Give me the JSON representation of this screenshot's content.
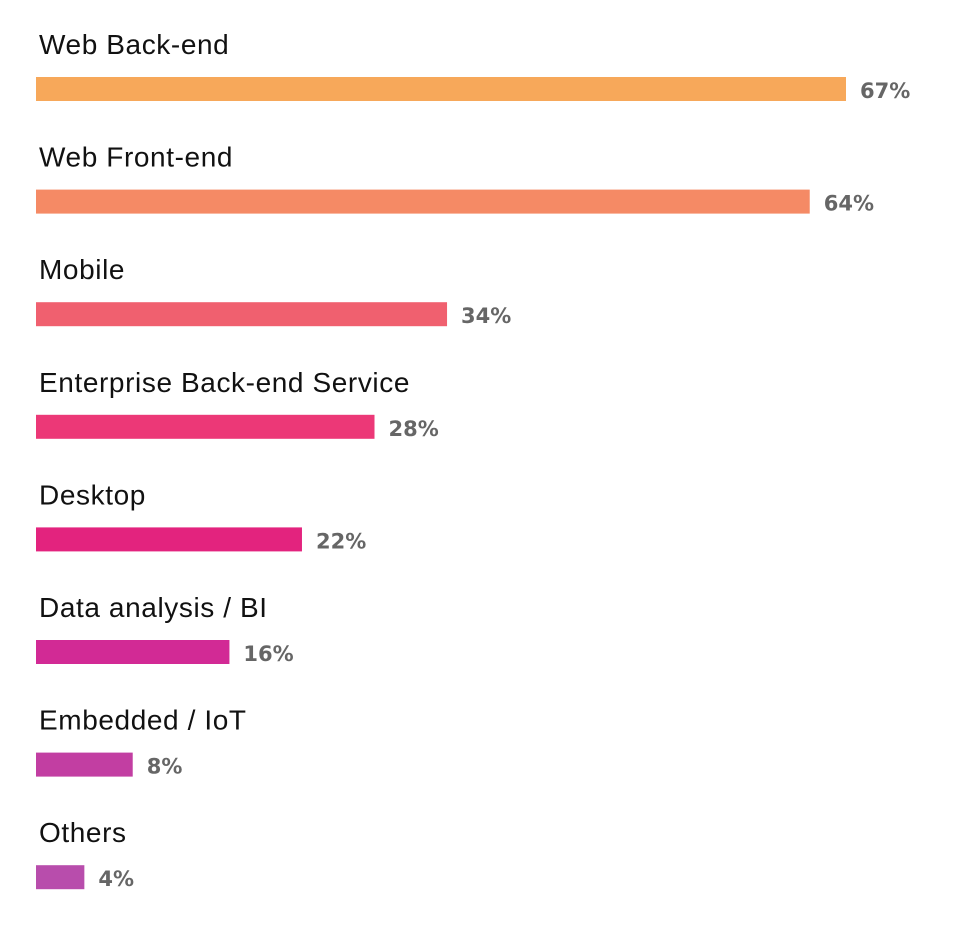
{
  "chart_data": {
    "type": "bar",
    "orientation": "horizontal",
    "categories": [
      "Web Back-end",
      "Web Front-end",
      "Mobile",
      "Enterprise Back-end Service",
      "Desktop",
      "Data analysis / BI",
      "Embedded / IoT",
      "Others"
    ],
    "values": [
      67,
      64,
      34,
      28,
      22,
      16,
      8,
      4
    ],
    "value_labels": [
      "67%",
      "64%",
      "34%",
      "28%",
      "22%",
      "16%",
      "8%",
      "4%"
    ],
    "unit": "%",
    "colors": [
      "#F7A85A",
      "#F58A65",
      "#F0606F",
      "#EC3877",
      "#E3237E",
      "#D22A95",
      "#C23EA2",
      "#B84DAC"
    ],
    "xlim": [
      0,
      67
    ],
    "grid": false,
    "legend": "none",
    "title": "",
    "xlabel": "",
    "ylabel": ""
  }
}
